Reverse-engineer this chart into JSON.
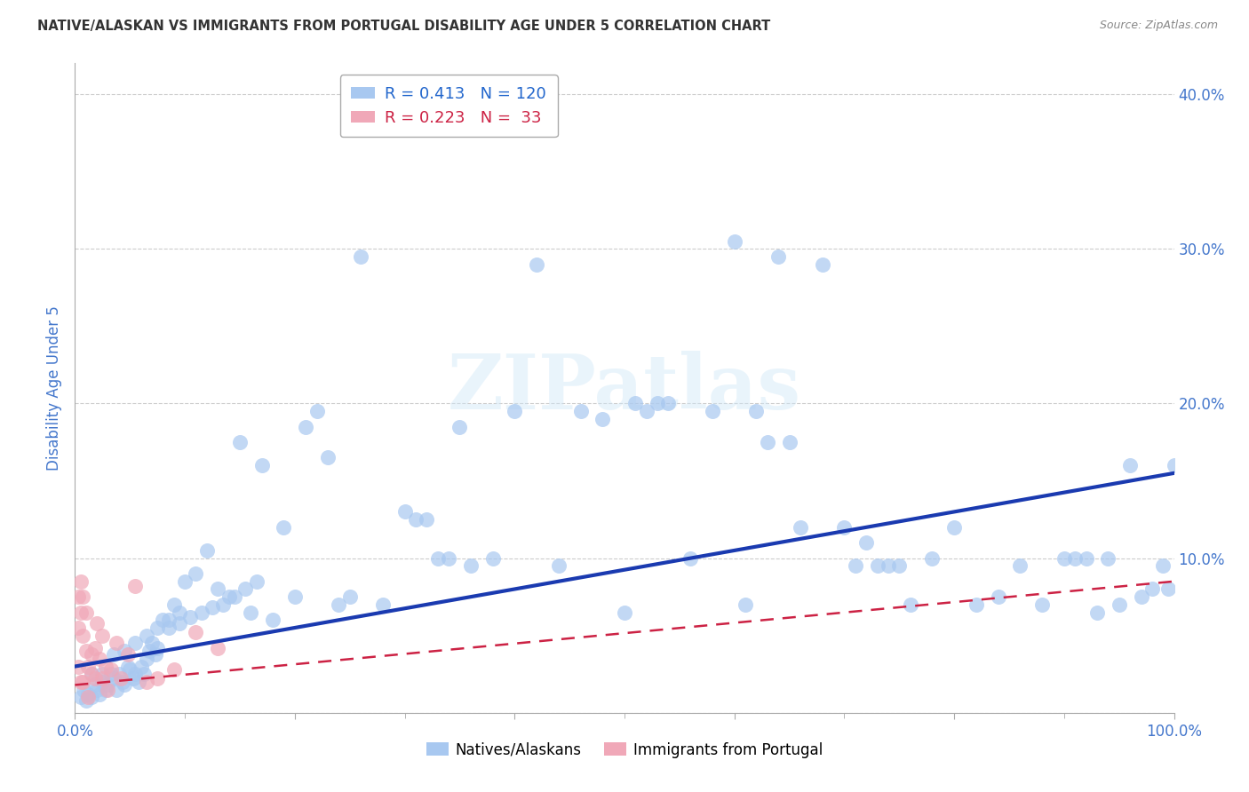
{
  "title": "NATIVE/ALASKAN VS IMMIGRANTS FROM PORTUGAL DISABILITY AGE UNDER 5 CORRELATION CHART",
  "source": "Source: ZipAtlas.com",
  "ylabel": "Disability Age Under 5",
  "xlim": [
    0,
    1.0
  ],
  "ylim": [
    0,
    0.42
  ],
  "blue_R": 0.413,
  "blue_N": 120,
  "pink_R": 0.223,
  "pink_N": 33,
  "blue_dot_color": "#a8c8f0",
  "pink_dot_color": "#f0a8b8",
  "trendline_blue_color": "#1a3ab0",
  "trendline_pink_color": "#cc2244",
  "background_color": "#ffffff",
  "watermark_text": "ZIPatlas",
  "grid_color": "#cccccc",
  "title_color": "#333333",
  "axis_label_color": "#4477cc",
  "legend_r_blue": "#2266cc",
  "legend_r_pink": "#cc2244",
  "blue_scatter_x": [
    0.005,
    0.008,
    0.01,
    0.012,
    0.015,
    0.018,
    0.02,
    0.022,
    0.025,
    0.028,
    0.03,
    0.033,
    0.035,
    0.038,
    0.04,
    0.043,
    0.045,
    0.048,
    0.05,
    0.053,
    0.055,
    0.058,
    0.06,
    0.063,
    0.065,
    0.068,
    0.07,
    0.073,
    0.075,
    0.08,
    0.085,
    0.09,
    0.095,
    0.1,
    0.11,
    0.12,
    0.13,
    0.14,
    0.15,
    0.16,
    0.17,
    0.18,
    0.19,
    0.2,
    0.21,
    0.22,
    0.23,
    0.24,
    0.25,
    0.26,
    0.28,
    0.3,
    0.31,
    0.32,
    0.33,
    0.34,
    0.35,
    0.36,
    0.38,
    0.4,
    0.42,
    0.44,
    0.46,
    0.48,
    0.5,
    0.51,
    0.52,
    0.53,
    0.54,
    0.56,
    0.58,
    0.6,
    0.61,
    0.62,
    0.63,
    0.64,
    0.65,
    0.66,
    0.68,
    0.7,
    0.71,
    0.72,
    0.73,
    0.74,
    0.75,
    0.76,
    0.78,
    0.8,
    0.82,
    0.84,
    0.86,
    0.88,
    0.9,
    0.91,
    0.92,
    0.93,
    0.94,
    0.95,
    0.96,
    0.97,
    0.98,
    0.99,
    0.995,
    1.0,
    0.015,
    0.025,
    0.035,
    0.045,
    0.055,
    0.065,
    0.075,
    0.085,
    0.095,
    0.105,
    0.115,
    0.125,
    0.135,
    0.145,
    0.155,
    0.165
  ],
  "blue_scatter_y": [
    0.01,
    0.015,
    0.008,
    0.012,
    0.01,
    0.018,
    0.015,
    0.012,
    0.02,
    0.015,
    0.018,
    0.025,
    0.022,
    0.015,
    0.025,
    0.02,
    0.018,
    0.03,
    0.028,
    0.022,
    0.025,
    0.02,
    0.03,
    0.025,
    0.035,
    0.04,
    0.045,
    0.038,
    0.042,
    0.06,
    0.055,
    0.07,
    0.065,
    0.085,
    0.09,
    0.105,
    0.08,
    0.075,
    0.175,
    0.065,
    0.16,
    0.06,
    0.12,
    0.075,
    0.185,
    0.195,
    0.165,
    0.07,
    0.075,
    0.295,
    0.07,
    0.13,
    0.125,
    0.125,
    0.1,
    0.1,
    0.185,
    0.095,
    0.1,
    0.195,
    0.29,
    0.095,
    0.195,
    0.19,
    0.065,
    0.2,
    0.195,
    0.2,
    0.2,
    0.1,
    0.195,
    0.305,
    0.07,
    0.195,
    0.175,
    0.295,
    0.175,
    0.12,
    0.29,
    0.12,
    0.095,
    0.11,
    0.095,
    0.095,
    0.095,
    0.07,
    0.1,
    0.12,
    0.07,
    0.075,
    0.095,
    0.07,
    0.1,
    0.1,
    0.1,
    0.065,
    0.1,
    0.07,
    0.16,
    0.075,
    0.08,
    0.095,
    0.08,
    0.16,
    0.025,
    0.025,
    0.038,
    0.04,
    0.045,
    0.05,
    0.055,
    0.06,
    0.058,
    0.062,
    0.065,
    0.068,
    0.07,
    0.075,
    0.08,
    0.085
  ],
  "pink_scatter_x": [
    0.003,
    0.003,
    0.003,
    0.005,
    0.005,
    0.005,
    0.007,
    0.007,
    0.007,
    0.01,
    0.01,
    0.012,
    0.012,
    0.015,
    0.015,
    0.018,
    0.018,
    0.02,
    0.022,
    0.025,
    0.025,
    0.028,
    0.03,
    0.033,
    0.038,
    0.042,
    0.048,
    0.055,
    0.065,
    0.075,
    0.09,
    0.11,
    0.13
  ],
  "pink_scatter_y": [
    0.03,
    0.055,
    0.075,
    0.085,
    0.065,
    0.02,
    0.05,
    0.075,
    0.02,
    0.04,
    0.065,
    0.03,
    0.01,
    0.038,
    0.025,
    0.042,
    0.022,
    0.058,
    0.035,
    0.05,
    0.022,
    0.03,
    0.015,
    0.028,
    0.045,
    0.022,
    0.038,
    0.082,
    0.02,
    0.022,
    0.028,
    0.052,
    0.042
  ],
  "blue_trendline_x0": 0.0,
  "blue_trendline_y0": 0.03,
  "blue_trendline_x1": 1.0,
  "blue_trendline_y1": 0.155,
  "pink_trendline_x0": 0.0,
  "pink_trendline_y0": 0.018,
  "pink_trendline_x1": 1.0,
  "pink_trendline_y1": 0.085
}
